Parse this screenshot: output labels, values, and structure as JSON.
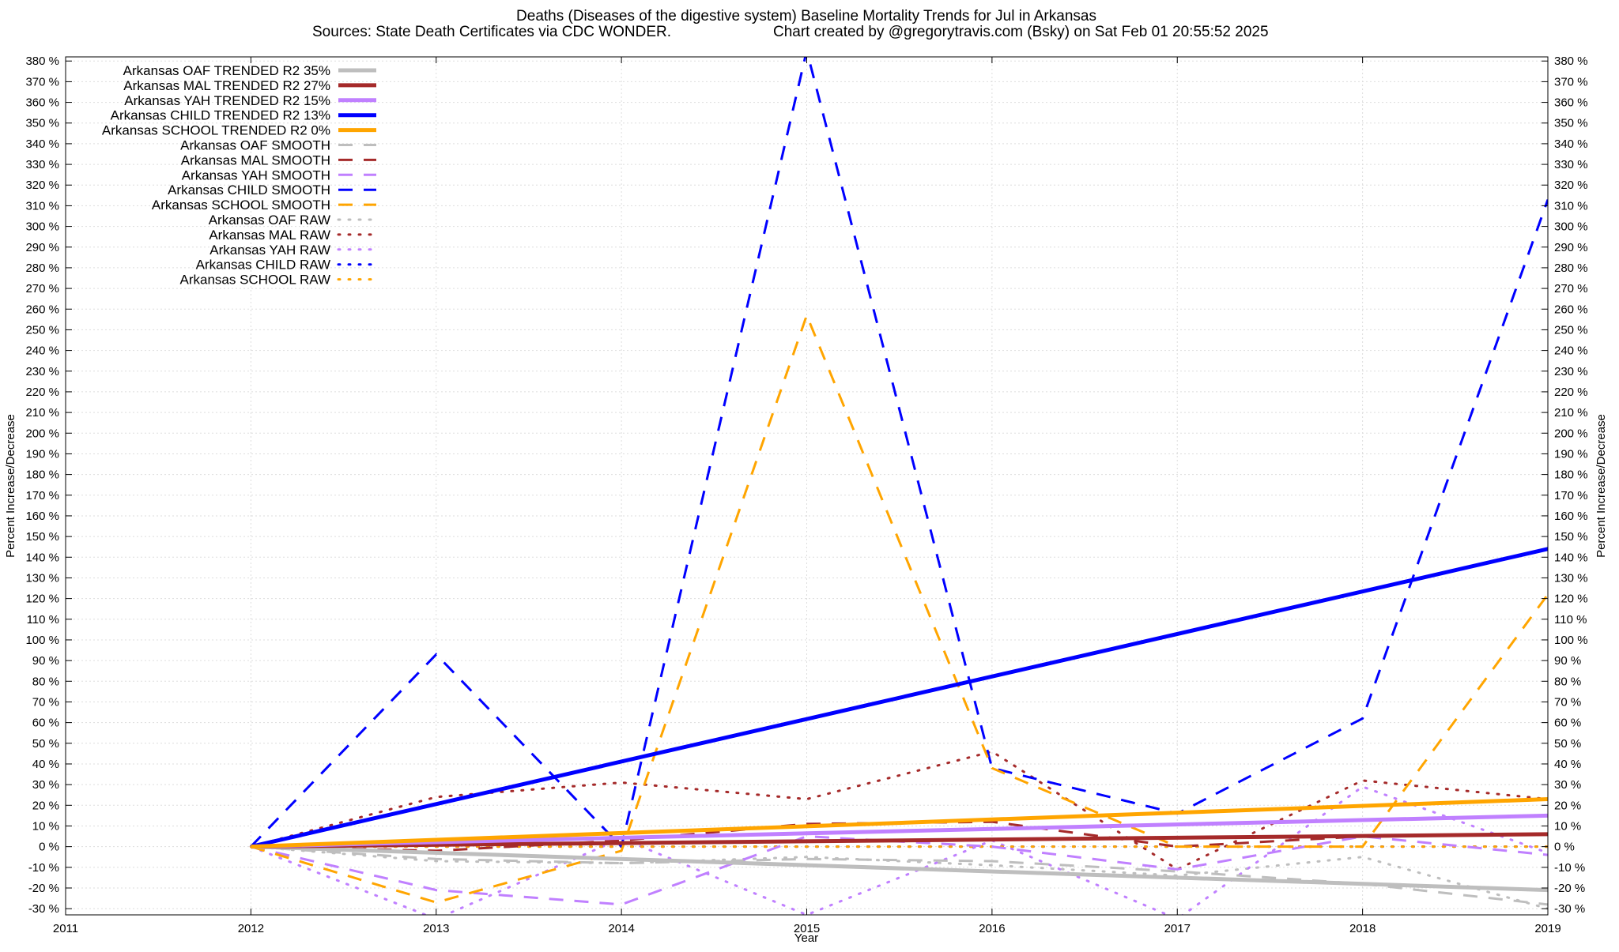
{
  "chart_data": {
    "type": "line",
    "title": "Deaths (Diseases of the digestive system)  Baseline Mortality Trends for Jul in Arkansas",
    "subtitle_left": "Sources: State Death Certificates via CDC WONDER.",
    "subtitle_right": "Chart created by @gregorytravis.com (Bsky) on Sat Feb 01 20:55:52 2025",
    "xlabel": "Year",
    "ylabel": "Percent Increase/Decrease",
    "xlim": [
      2011,
      2019
    ],
    "ylim": [
      -33,
      382
    ],
    "xticks": [
      "2011",
      "2012",
      "2013",
      "2014",
      "2015",
      "2016",
      "2017",
      "2018",
      "2019"
    ],
    "yticks": [
      "-30 %",
      "-20 %",
      "-10 %",
      "0 %",
      "10 %",
      "20 %",
      "30 %",
      "40 %",
      "50 %",
      "60 %",
      "70 %",
      "80 %",
      "90 %",
      "100 %",
      "110 %",
      "120 %",
      "130 %",
      "140 %",
      "150 %",
      "160 %",
      "170 %",
      "180 %",
      "190 %",
      "200 %",
      "210 %",
      "220 %",
      "230 %",
      "240 %",
      "250 %",
      "260 %",
      "270 %",
      "280 %",
      "290 %",
      "300 %",
      "310 %",
      "320 %",
      "330 %",
      "340 %",
      "350 %",
      "360 %",
      "370 %",
      "380 %"
    ],
    "grid": true,
    "legend_position": "top-left",
    "series": [
      {
        "name": "Arkansas OAF TRENDED R2  35%",
        "color": "#bebebe",
        "style": "solid",
        "x": [
          2012,
          2019
        ],
        "y": [
          0,
          -21
        ]
      },
      {
        "name": "Arkansas MAL TRENDED R2  27%",
        "color": "#a52a2a",
        "style": "solid",
        "x": [
          2012,
          2019
        ],
        "y": [
          0,
          6
        ]
      },
      {
        "name": "Arkansas YAH TRENDED R2  15%",
        "color": "#c080ff",
        "style": "solid",
        "x": [
          2012,
          2019
        ],
        "y": [
          0,
          15
        ]
      },
      {
        "name": "Arkansas CHILD TRENDED R2  13%",
        "color": "#0000ff",
        "style": "solid",
        "x": [
          2012,
          2019
        ],
        "y": [
          0,
          144
        ]
      },
      {
        "name": "Arkansas SCHOOL TRENDED R2   0%",
        "color": "#ffa500",
        "style": "solid",
        "x": [
          2012,
          2019
        ],
        "y": [
          0,
          23
        ]
      },
      {
        "name": "Arkansas OAF SMOOTH",
        "color": "#bebebe",
        "style": "dashed",
        "x": [
          2012,
          2013,
          2014,
          2015,
          2016,
          2017,
          2018,
          2019
        ],
        "y": [
          0,
          -6,
          -8,
          -6,
          -7,
          -12,
          -18,
          -28
        ]
      },
      {
        "name": "Arkansas MAL SMOOTH",
        "color": "#a52a2a",
        "style": "dashed",
        "x": [
          2012,
          2013,
          2014,
          2015,
          2016,
          2017,
          2018,
          2019
        ],
        "y": [
          0,
          -2,
          3,
          11,
          12,
          0,
          5,
          6
        ]
      },
      {
        "name": "Arkansas YAH SMOOTH",
        "color": "#c080ff",
        "style": "dashed",
        "x": [
          2012,
          2013,
          2014,
          2015,
          2016,
          2017,
          2018,
          2019
        ],
        "y": [
          0,
          -21,
          -28,
          5,
          0,
          -11,
          5,
          -4
        ]
      },
      {
        "name": "Arkansas CHILD SMOOTH",
        "color": "#0000ff",
        "style": "dashed",
        "x": [
          2012,
          2013,
          2014,
          2015,
          2016,
          2017,
          2018,
          2019
        ],
        "y": [
          0,
          93,
          0,
          385,
          38,
          16,
          62,
          313
        ]
      },
      {
        "name": "Arkansas SCHOOL SMOOTH",
        "color": "#ffa500",
        "style": "dashed",
        "x": [
          2012,
          2013,
          2014,
          2015,
          2016,
          2017,
          2018,
          2019
        ],
        "y": [
          0,
          -27,
          -2,
          257,
          38,
          0,
          0,
          122
        ]
      },
      {
        "name": "Arkansas OAF RAW",
        "color": "#bebebe",
        "style": "dotted",
        "x": [
          2012,
          2013,
          2014,
          2015,
          2016,
          2017,
          2018,
          2019
        ],
        "y": [
          0,
          -7,
          -8,
          -5,
          -9,
          -14,
          -5,
          -30
        ]
      },
      {
        "name": "Arkansas MAL RAW",
        "color": "#a52a2a",
        "style": "dotted",
        "x": [
          2012,
          2013,
          2014,
          2015,
          2016,
          2017,
          2018,
          2019
        ],
        "y": [
          0,
          24,
          31,
          23,
          46,
          -11,
          32,
          23
        ]
      },
      {
        "name": "Arkansas YAH RAW",
        "color": "#c080ff",
        "style": "dotted",
        "x": [
          2012,
          2013,
          2014,
          2015,
          2016,
          2017,
          2018,
          2019
        ],
        "y": [
          0,
          -35,
          4,
          -33,
          3,
          -35,
          29,
          -3
        ]
      },
      {
        "name": "Arkansas CHILD RAW",
        "color": "#0000ff",
        "style": "dotted",
        "x": [
          2012,
          2013,
          2014,
          2015,
          2016,
          2017,
          2018,
          2019
        ],
        "y": [
          0,
          0,
          0,
          0,
          0,
          0,
          0,
          0
        ]
      },
      {
        "name": "Arkansas SCHOOL RAW",
        "color": "#ffa500",
        "style": "dotted",
        "x": [
          2012,
          2013,
          2014,
          2015,
          2016,
          2017,
          2018,
          2019
        ],
        "y": [
          0,
          0,
          0,
          0,
          0,
          0,
          0,
          0
        ]
      }
    ]
  }
}
